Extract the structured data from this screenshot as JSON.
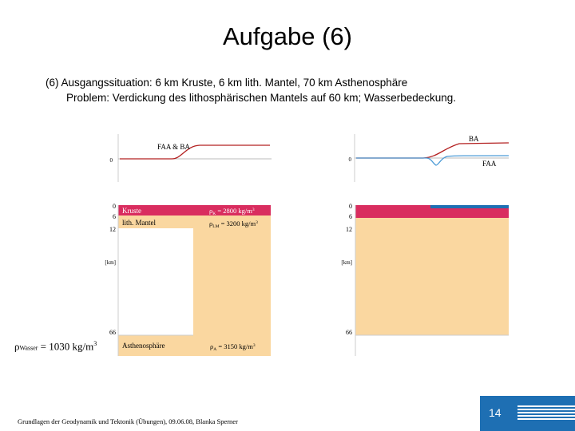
{
  "slide": {
    "title": "Aufgabe (6)",
    "line1": "(6) Ausgangssituation: 6 km Kruste, 6 km lith. Mantel, 70 km Asthenosphäre",
    "line2": "Problem: Verdickung des lithosphärischen Mantels auf 60 km; Wasserbedeckung."
  },
  "left_figure": {
    "profile_label": "FAA & BA",
    "profile_zero": "0",
    "depth_ticks": [
      "0",
      "6",
      "12",
      "66"
    ],
    "depth_unit": "[km]",
    "layer_kruste": "Kruste",
    "rho_kruste": "ρ",
    "rho_kruste_sub": "K",
    "rho_kruste_value": " = 2800 kg/m",
    "rho_kruste_sup": "3",
    "layer_mantel": "lith. Mantel",
    "rho_mantel": "ρ",
    "rho_mantel_sub": "LM",
    "rho_mantel_value": " = 3200 kg/m",
    "rho_mantel_sup": "3",
    "layer_asth": "Asthenosphäre",
    "rho_asth": "ρ",
    "rho_asth_sub": "A",
    "rho_asth_value": " = 3150 kg/m",
    "rho_asth_sup": "3"
  },
  "right_figure": {
    "profile_label_ba": "BA",
    "profile_label_faa": "FAA",
    "profile_zero": "0",
    "depth_ticks": [
      "0",
      "6",
      "12",
      "66"
    ],
    "depth_unit": "[km]"
  },
  "wasser": {
    "rho": "ρ",
    "sub": "Wasser",
    "value": " = 1030 kg/m",
    "sup": "3"
  },
  "footer": {
    "text": "Grundlagen der Geodynamik und Tektonik (Übungen), 09.06.08, Blanka Sperner",
    "page": "14"
  },
  "colors": {
    "crust": "#d92d5f",
    "mantle": "#fad7a0",
    "water": "#1e6fb3",
    "curve": "#b32020",
    "faa_curve": "#4a9ad6",
    "slide_accent": "#1e6fb3"
  }
}
